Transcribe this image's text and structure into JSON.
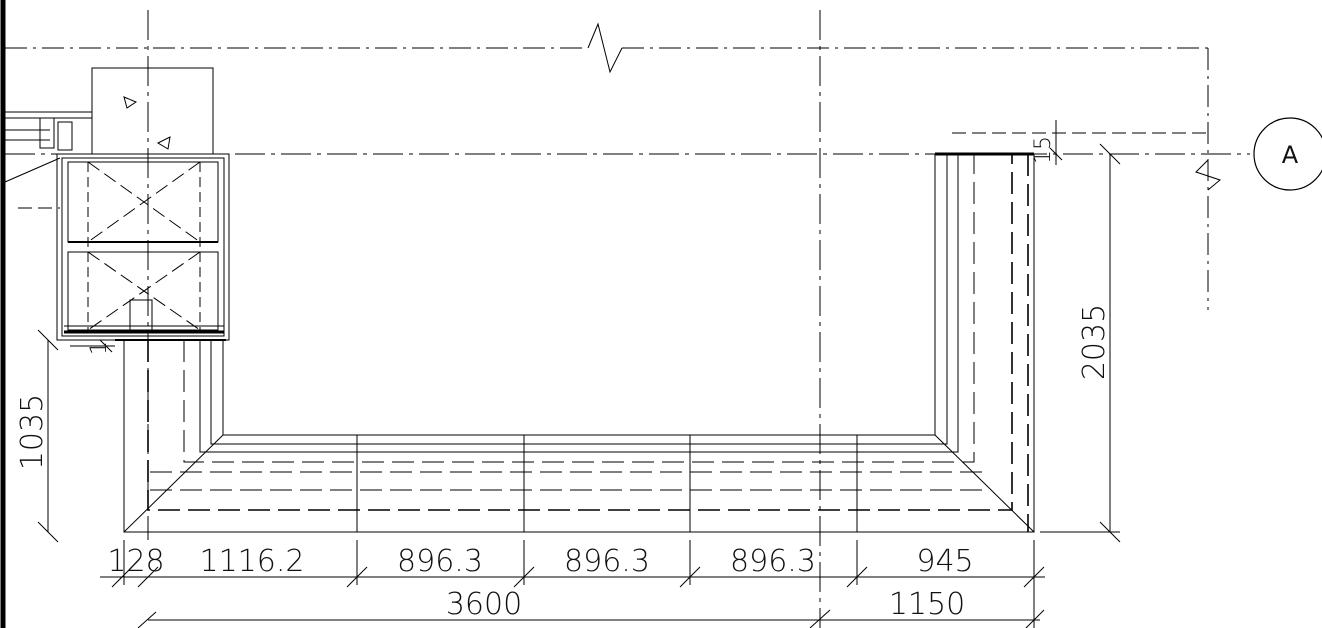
{
  "drawing": {
    "grid_label": "A",
    "vertical_dims": {
      "left": "1035",
      "right": "2035",
      "small_left": "1",
      "small_right": "15"
    },
    "bottom_dims": {
      "row1": [
        "128",
        "1116.2",
        "896.3",
        "896.3",
        "896.3",
        "945"
      ],
      "row2": [
        "3600",
        "1150"
      ]
    }
  }
}
